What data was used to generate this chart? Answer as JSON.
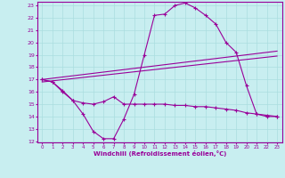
{
  "xlabel": "Windchill (Refroidissement éolien,°C)",
  "background_color": "#c8eef0",
  "line_color": "#990099",
  "grid_color": "#aadddf",
  "xmin": 0,
  "xmax": 23,
  "ymin": 12,
  "ymax": 23,
  "yticks": [
    12,
    13,
    14,
    15,
    16,
    17,
    18,
    19,
    20,
    21,
    22,
    23
  ],
  "xticks": [
    0,
    1,
    2,
    3,
    4,
    5,
    6,
    7,
    8,
    9,
    10,
    11,
    12,
    13,
    14,
    15,
    16,
    17,
    18,
    19,
    20,
    21,
    22,
    23
  ],
  "curve1_x": [
    0,
    1,
    2,
    3,
    4,
    5,
    6,
    7,
    8,
    9,
    10,
    11,
    12,
    13,
    14,
    15,
    16,
    17,
    18,
    19,
    20,
    21,
    22,
    23
  ],
  "curve1_y": [
    17.0,
    16.8,
    16.0,
    15.3,
    14.2,
    12.8,
    12.2,
    12.2,
    13.8,
    15.8,
    19.0,
    22.2,
    22.3,
    23.0,
    23.2,
    22.8,
    22.2,
    21.5,
    20.0,
    19.2,
    16.5,
    14.2,
    14.0,
    14.0
  ],
  "curve2_x": [
    0,
    1,
    2,
    3,
    4,
    5,
    6,
    7,
    8,
    9,
    10,
    11,
    12,
    13,
    14,
    15,
    16,
    17,
    18,
    19,
    20,
    21,
    22,
    23
  ],
  "curve2_y": [
    17.0,
    16.8,
    16.1,
    15.3,
    15.1,
    15.0,
    15.2,
    15.6,
    15.0,
    15.0,
    15.0,
    15.0,
    15.0,
    14.9,
    14.9,
    14.8,
    14.8,
    14.7,
    14.6,
    14.5,
    14.3,
    14.2,
    14.1,
    14.0
  ],
  "trend1_x": [
    0,
    23
  ],
  "trend1_y": [
    17.0,
    19.3
  ],
  "trend2_x": [
    0,
    23
  ],
  "trend2_y": [
    16.8,
    18.9
  ]
}
